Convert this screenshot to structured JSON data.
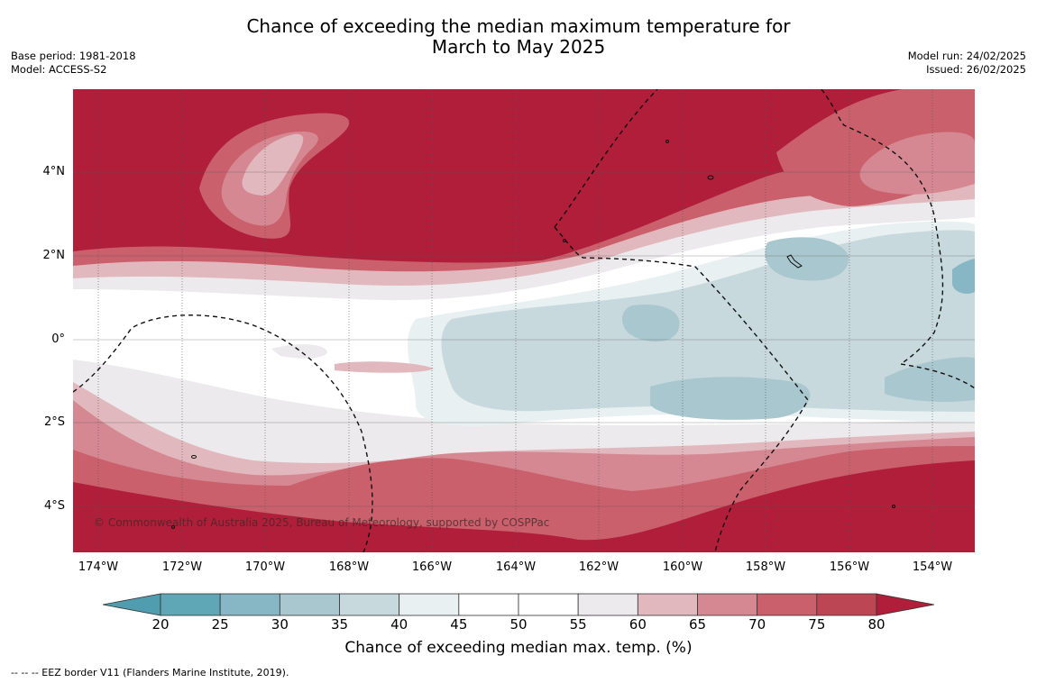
{
  "title_line1": "Chance of exceeding the median maximum temperature for",
  "title_line2": "March to May 2025",
  "meta_left": [
    "Base period: 1981-2018",
    "Model: ACCESS-S2"
  ],
  "meta_right": [
    "Model run: 24/02/2025",
    "Issued: 26/02/2025"
  ],
  "copyright": "© Commonwealth of Australia 2025, Bureau of Meteorology, supported by COSPPac",
  "lat_labels": [
    "4°N",
    "2°N",
    "0°",
    "2°S",
    "4°S"
  ],
  "lon_labels": [
    "174°W",
    "172°W",
    "170°W",
    "168°W",
    "166°W",
    "164°W",
    "162°W",
    "160°W",
    "158°W",
    "156°W",
    "154°W"
  ],
  "colorbar": {
    "ticks": [
      "20",
      "25",
      "30",
      "35",
      "40",
      "45",
      "50",
      "55",
      "60",
      "65",
      "70",
      "75",
      "80"
    ],
    "colors": [
      "#5fa7b6",
      "#87b7c4",
      "#a9c7ce",
      "#c8d9de",
      "#e9f0f2",
      "#ffffff",
      "#ffffff",
      "#eceaec",
      "#e2b8bf",
      "#d58892",
      "#c9606c",
      "#bd4655"
    ],
    "under_color": "#4f9dae",
    "over_color": "#b01e39",
    "title": "Chance of exceeding median max. temp. (%)"
  },
  "footnote": "--  --  -- EEZ border V11 (Flanders Marine Institute, 2019)."
}
